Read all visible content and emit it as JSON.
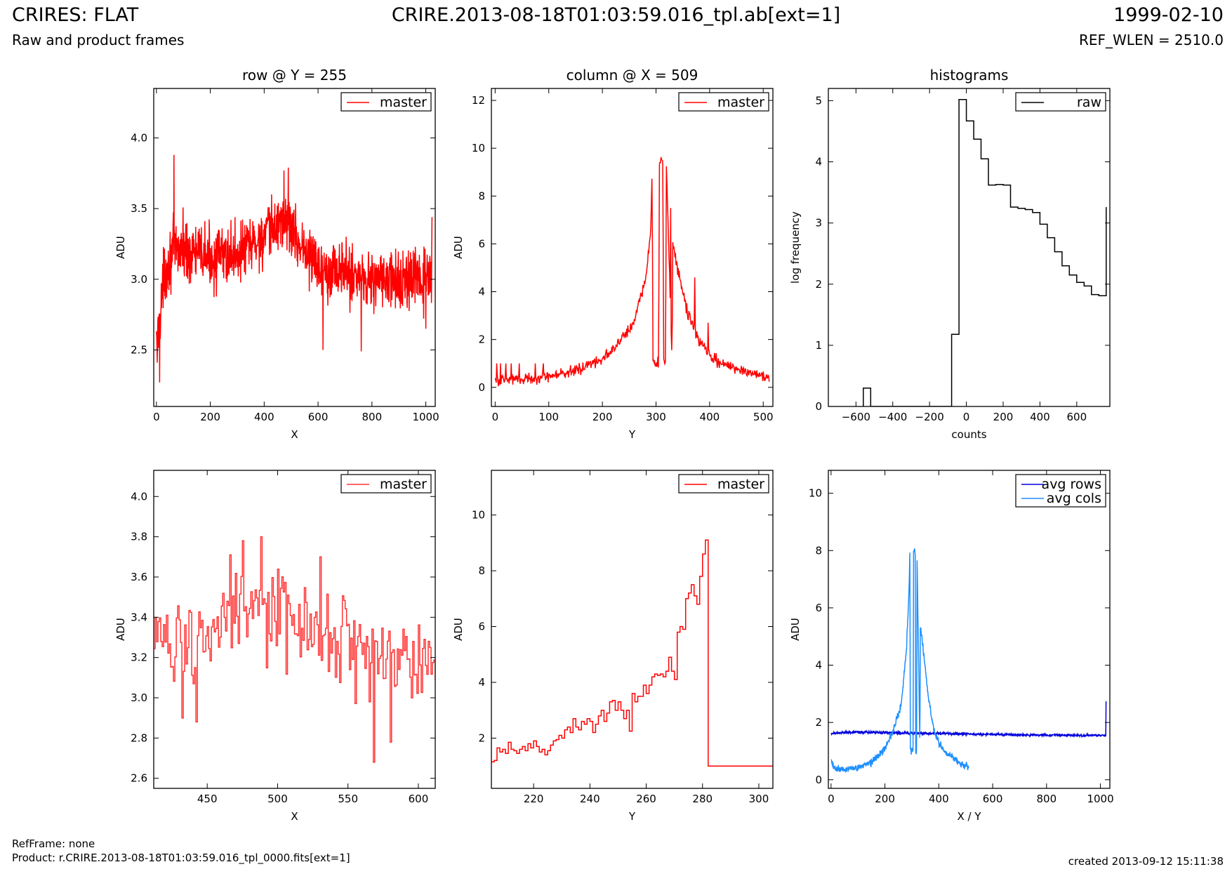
{
  "header": {
    "title_left": "CRIRES: FLAT",
    "subtitle_left": "Raw and product frames",
    "title_center": "CRIRE.2013-08-18T01:03:59.016_tpl.ab[ext=1]",
    "title_right": "1999-02-10",
    "subtitle_right": "REF_WLEN = 2510.0"
  },
  "footer": {
    "refframe": "RefFrame: none",
    "product": "Product: r.CRIRE.2013-08-18T01:03:59.016_tpl_0000.fits[ext=1]",
    "created": "created 2013-09-12 15:11:38"
  },
  "colors": {
    "master": "#ff0000",
    "master_zoom": "#ff3333",
    "raw": "#000000",
    "avg_rows": "#0000dd",
    "avg_cols": "#1e8fff"
  },
  "chart_data": [
    {
      "id": "row-plot",
      "type": "line",
      "title": "row @ Y = 255",
      "xlabel": "X",
      "ylabel": "ADU",
      "xlim": [
        -10,
        1035
      ],
      "ylim": [
        2.1,
        4.35
      ],
      "xticks": [
        0,
        200,
        400,
        600,
        800,
        1000
      ],
      "yticks": [
        2.5,
        3.0,
        3.5,
        4.0
      ],
      "xtick_labels": [
        "0",
        "200",
        "400",
        "600",
        "800",
        "1000"
      ],
      "ytick_labels": [
        "2.5",
        "3.0",
        "3.5",
        "4.0"
      ],
      "legend": "top-right",
      "grid": false,
      "series": [
        {
          "name": "master",
          "color": "#ff0000",
          "style": "noise",
          "x": [
            0,
            10,
            30,
            60,
            100,
            200,
            300,
            400,
            470,
            500,
            550,
            600,
            700,
            800,
            900,
            1023
          ],
          "y": [
            2.5,
            2.7,
            3.05,
            3.2,
            3.22,
            3.15,
            3.18,
            3.3,
            3.42,
            3.35,
            3.2,
            3.1,
            3.05,
            3.0,
            2.98,
            3.0
          ],
          "amplitude": 0.19,
          "spikes": [
            [
              65,
              3.88
            ],
            [
              490,
              3.79
            ],
            [
              474,
              3.77
            ],
            [
              618,
              2.5
            ],
            [
              760,
              2.49
            ],
            [
              12,
              2.27
            ],
            [
              3,
              2.41
            ],
            [
              1023,
              3.44
            ],
            [
              1000,
              2.65
            ]
          ]
        }
      ]
    },
    {
      "id": "col-plot",
      "type": "line",
      "title": "column @ X = 509",
      "xlabel": "Y",
      "ylabel": "ADU",
      "xlim": [
        -7,
        518
      ],
      "ylim": [
        -0.8,
        12.5
      ],
      "xticks": [
        0,
        100,
        200,
        300,
        400,
        500
      ],
      "yticks": [
        0,
        2,
        4,
        6,
        8,
        10,
        12
      ],
      "xtick_labels": [
        "0",
        "100",
        "200",
        "300",
        "400",
        "500"
      ],
      "ytick_labels": [
        "0",
        "2",
        "4",
        "6",
        "8",
        "10",
        "12"
      ],
      "legend": "top-right",
      "grid": false,
      "series": [
        {
          "name": "master",
          "color": "#ff0000",
          "style": "noise",
          "x": [
            0,
            50,
            100,
            150,
            200,
            230,
            260,
            280,
            290,
            293,
            294,
            305,
            306,
            313,
            314,
            318,
            319,
            330,
            331,
            345,
            360,
            380,
            400,
            420,
            450,
            480,
            511
          ],
          "y": [
            0.3,
            0.35,
            0.45,
            0.7,
            1.2,
            1.8,
            2.8,
            4.5,
            6.5,
            9.0,
            1.0,
            1.0,
            9.5,
            9.5,
            1.0,
            1.0,
            9.5,
            1.0,
            6.0,
            4.5,
            3.0,
            2.0,
            1.3,
            1.0,
            0.8,
            0.6,
            0.4
          ],
          "amplitude": 0.22,
          "spikes": [
            [
              3,
              1.0
            ],
            [
              10,
              1.0
            ],
            [
              20,
              1.0
            ],
            [
              30,
              1.0
            ],
            [
              45,
              1.0
            ],
            [
              75,
              1.0
            ],
            [
              90,
              1.0
            ],
            [
              327,
              7.5
            ],
            [
              340,
              4.7
            ],
            [
              372,
              4.6
            ],
            [
              397,
              2.7
            ]
          ]
        }
      ]
    },
    {
      "id": "hist-plot",
      "type": "step",
      "title": "histograms",
      "xlabel": "counts",
      "ylabel": "log frequency",
      "xlim": [
        -750,
        780
      ],
      "ylim": [
        0,
        5.2
      ],
      "xticks": [
        -600,
        -400,
        -200,
        0,
        200,
        400,
        600
      ],
      "yticks": [
        0,
        1,
        2,
        3,
        4,
        5
      ],
      "xtick_labels": [
        "−600",
        "−400",
        "−200",
        "0",
        "200",
        "400",
        "600"
      ],
      "ytick_labels": [
        "0",
        "1",
        "2",
        "3",
        "4",
        "5"
      ],
      "legend": "top-right",
      "grid": false,
      "series": [
        {
          "name": "raw",
          "color": "#000000",
          "edges": [
            -560,
            -520,
            -80,
            -40,
            0,
            40,
            80,
            120,
            160,
            200,
            240,
            280,
            320,
            360,
            400,
            440,
            480,
            520,
            560,
            600,
            640,
            680,
            720,
            760
          ],
          "counts": [
            0.3,
            0,
            1.18,
            5.02,
            4.67,
            4.37,
            4.05,
            3.62,
            3.63,
            3.62,
            3.26,
            3.24,
            3.22,
            3.17,
            2.98,
            2.76,
            2.53,
            2.3,
            2.15,
            2.03,
            1.97,
            1.83,
            1.81,
            3.26
          ]
        }
      ]
    },
    {
      "id": "row-zoom-plot",
      "type": "line",
      "title": "",
      "xlabel": "X",
      "ylabel": "ADU",
      "xlim": [
        412,
        612
      ],
      "ylim": [
        2.55,
        4.13
      ],
      "xticks": [
        450,
        500,
        550,
        600
      ],
      "yticks": [
        2.6,
        2.8,
        3.0,
        3.2,
        3.4,
        3.6,
        3.8,
        4.0
      ],
      "xtick_labels": [
        "450",
        "500",
        "550",
        "600"
      ],
      "ytick_labels": [
        "2.6",
        "2.8",
        "3.0",
        "3.2",
        "3.4",
        "3.6",
        "3.8",
        "4.0"
      ],
      "legend": "top-right",
      "grid": false,
      "series": [
        {
          "name": "master",
          "color": "#ff3333",
          "style": "stepnoise",
          "x": [
            412,
            450,
            480,
            500,
            520,
            550,
            580,
            612
          ],
          "y": [
            3.3,
            3.3,
            3.42,
            3.42,
            3.3,
            3.3,
            3.2,
            3.2
          ],
          "amplitude": 0.2,
          "spikes": [
            [
              475,
              3.78
            ],
            [
              488,
              3.8
            ],
            [
              568,
              2.68
            ],
            [
              580,
              2.78
            ],
            [
              432,
              2.9
            ],
            [
              442,
              2.88
            ],
            [
              466,
              3.71
            ],
            [
              530,
              3.7
            ]
          ]
        }
      ]
    },
    {
      "id": "col-zoom-plot",
      "type": "line",
      "title": "",
      "xlabel": "Y",
      "ylabel": "ADU",
      "xlim": [
        205,
        305
      ],
      "ylim": [
        0.2,
        11.6
      ],
      "xticks": [
        220,
        240,
        260,
        280,
        300
      ],
      "yticks": [
        2,
        4,
        6,
        8,
        10
      ],
      "xtick_labels": [
        "220",
        "240",
        "260",
        "280",
        "300"
      ],
      "ytick_labels": [
        "2",
        "4",
        "6",
        "8",
        "10"
      ],
      "legend": "top-right",
      "grid": false,
      "series": [
        {
          "name": "master",
          "color": "#ff0000",
          "style": "step",
          "x": [
            205,
            206,
            207,
            208,
            209,
            210,
            211,
            212,
            213,
            214,
            215,
            216,
            217,
            218,
            219,
            220,
            221,
            222,
            223,
            224,
            225,
            226,
            227,
            228,
            229,
            230,
            231,
            232,
            233,
            234,
            235,
            236,
            237,
            238,
            239,
            240,
            241,
            242,
            243,
            244,
            245,
            246,
            247,
            248,
            249,
            250,
            251,
            252,
            253,
            254,
            255,
            256,
            257,
            258,
            259,
            260,
            261,
            262,
            263,
            264,
            265,
            266,
            267,
            268,
            269,
            270,
            271,
            272,
            273,
            274,
            275,
            276,
            277,
            278,
            279,
            280,
            281,
            282,
            283,
            284,
            285,
            286,
            287,
            288,
            289,
            290,
            291,
            292,
            293,
            294,
            295,
            296,
            297,
            298,
            299,
            300,
            301,
            302,
            303,
            304,
            305
          ],
          "y": [
            1.15,
            1.2,
            1.65,
            1.5,
            1.6,
            1.45,
            1.85,
            1.6,
            1.55,
            1.45,
            1.6,
            1.7,
            1.55,
            1.8,
            1.65,
            1.9,
            1.7,
            1.5,
            1.6,
            1.4,
            1.55,
            1.75,
            1.9,
            1.95,
            2.1,
            2.0,
            2.3,
            2.4,
            2.2,
            2.7,
            2.4,
            2.3,
            2.6,
            2.5,
            2.7,
            2.6,
            2.2,
            2.5,
            2.8,
            3.0,
            2.6,
            2.9,
            3.3,
            3.35,
            3.0,
            3.3,
            3.0,
            2.7,
            3.0,
            2.25,
            3.6,
            3.3,
            3.5,
            3.5,
            3.9,
            3.6,
            3.9,
            4.2,
            4.3,
            4.25,
            4.3,
            4.2,
            4.4,
            4.9,
            4.4,
            4.1,
            5.8,
            6.0,
            5.9,
            7.0,
            7.2,
            7.5,
            7.1,
            6.8,
            7.8,
            8.6,
            9.1,
            1.0,
            1.0,
            1.0,
            1.0,
            1.0,
            1.0,
            1.0,
            1.0,
            1.0,
            1.0,
            1.0,
            1.0,
            1.0,
            1.0,
            1.0,
            1.0,
            1.0,
            1.0,
            1.0,
            1.0,
            1.0,
            1.0,
            1.0,
            1.0
          ]
        }
      ]
    },
    {
      "id": "avg-plot",
      "type": "line",
      "title": "",
      "xlabel": "X / Y",
      "ylabel": "ADU",
      "xlim": [
        -10,
        1035
      ],
      "ylim": [
        -0.3,
        10.8
      ],
      "xticks": [
        0,
        200,
        400,
        600,
        800,
        1000
      ],
      "yticks": [
        0,
        2,
        4,
        6,
        8,
        10
      ],
      "xtick_labels": [
        "0",
        "200",
        "400",
        "600",
        "800",
        "1000"
      ],
      "ytick_labels": [
        "0",
        "2",
        "4",
        "6",
        "8",
        "10"
      ],
      "legend": "top-right",
      "grid": false,
      "series": [
        {
          "name": "avg rows",
          "color": "#0000dd",
          "style": "noise",
          "x": [
            0,
            100,
            300,
            500,
            700,
            900,
            1020,
            1021,
            1023
          ],
          "y": [
            1.62,
            1.66,
            1.63,
            1.6,
            1.57,
            1.55,
            1.55,
            2.7,
            2.7
          ],
          "amplitude": 0.04,
          "spikes": []
        },
        {
          "name": "avg cols",
          "color": "#1e8fff",
          "style": "noise",
          "x": [
            0,
            20,
            50,
            100,
            150,
            200,
            230,
            260,
            280,
            290,
            293,
            294,
            305,
            306,
            313,
            314,
            318,
            319,
            330,
            331,
            345,
            360,
            380,
            400,
            420,
            450,
            480,
            511
          ],
          "y": [
            0.6,
            0.38,
            0.38,
            0.42,
            0.6,
            1.1,
            1.7,
            2.6,
            4.5,
            6.8,
            8.3,
            1.0,
            1.0,
            8.0,
            8.0,
            1.0,
            1.0,
            8.0,
            1.0,
            5.5,
            4.3,
            3.0,
            1.8,
            1.3,
            1.0,
            0.8,
            0.55,
            0.45
          ],
          "amplitude": 0.12,
          "spikes": []
        }
      ]
    }
  ]
}
